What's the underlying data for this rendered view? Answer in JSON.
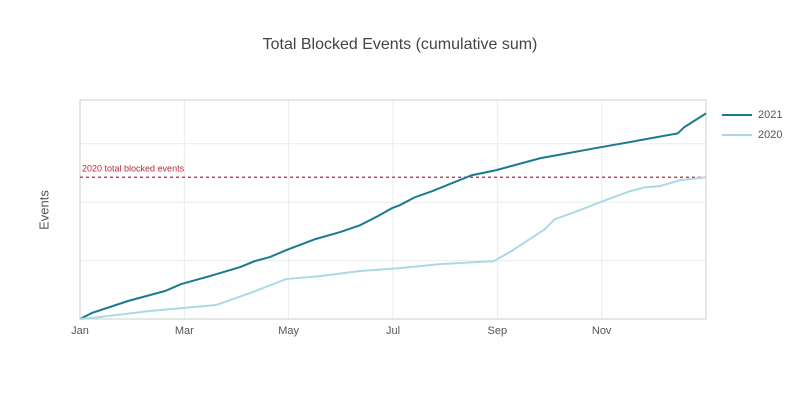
{
  "chart_data": {
    "type": "line",
    "title": "Total Blocked Events (cumulative sum)",
    "y_label": "Events",
    "xlim": [
      0,
      12
    ],
    "xticks": [
      {
        "value": 0,
        "label": "Jan"
      },
      {
        "value": 2,
        "label": "Mar"
      },
      {
        "value": 4,
        "label": "May"
      },
      {
        "value": 6,
        "label": "Jul"
      },
      {
        "value": 8,
        "label": "Sep"
      },
      {
        "value": 10,
        "label": "Nov"
      }
    ],
    "ylim": [
      0,
      3750
    ],
    "yticks": [
      0,
      1000,
      2000,
      3000
    ],
    "ytick_labels": false,
    "grid": true,
    "legend": "right",
    "series": [
      {
        "name": "2021",
        "color": "#1b7a8e",
        "x": [
          0,
          0.23,
          0.92,
          1.63,
          1.94,
          2.49,
          3.07,
          3.35,
          3.64,
          3.95,
          4.51,
          4.98,
          5.37,
          5.71,
          5.98,
          6.13,
          6.42,
          6.75,
          7.51,
          7.97,
          8.82,
          9.97,
          10.73,
          11.46,
          11.58,
          12
        ],
        "values": [
          0,
          103,
          308,
          479,
          598,
          735,
          889,
          991,
          1060,
          1179,
          1368,
          1487,
          1607,
          1761,
          1897,
          1949,
          2085,
          2188,
          2462,
          2547,
          2752,
          2940,
          3060,
          3179,
          3282,
          3521
        ]
      },
      {
        "name": "2020",
        "color": "#add8e6",
        "x": [
          0,
          0.38,
          1.34,
          2.61,
          3.26,
          3.95,
          4.6,
          5.37,
          6.13,
          6.9,
          7.93,
          8.24,
          8.91,
          9.1,
          9.48,
          9.97,
          10.54,
          10.83,
          11.11,
          11.5,
          12
        ],
        "values": [
          0,
          34,
          137,
          239,
          444,
          684,
          735,
          821,
          872,
          940,
          991,
          1145,
          1538,
          1709,
          1829,
          2000,
          2188,
          2256,
          2274,
          2376,
          2427
        ]
      }
    ],
    "reference_line": {
      "value": 2427,
      "label": "2020 total blocked events",
      "color": "#b5283f"
    }
  }
}
